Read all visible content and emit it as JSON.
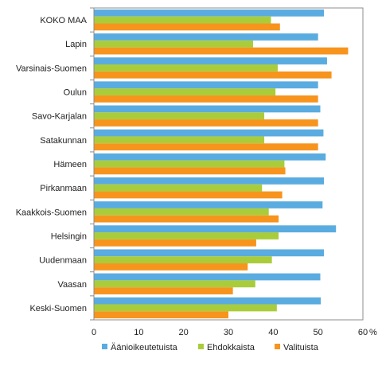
{
  "chart_data": {
    "type": "bar",
    "orientation": "horizontal",
    "categories": [
      "KOKO MAA",
      "Lapin",
      "Varsinais-Suomen",
      "Oulun",
      "Savo-Karjalan",
      "Satakunnan",
      "Hämeen",
      "Pirkanmaan",
      "Kaakkois-Suomen",
      "Helsingin",
      "Uudenmaan",
      "Vaasan",
      "Keski-Suomen"
    ],
    "series": [
      {
        "name": "Äänioikeutetuista",
        "color": "#5aace0",
        "values": [
          51.3,
          50.0,
          52.0,
          50.0,
          50.5,
          51.2,
          51.7,
          51.3,
          51.0,
          54.0,
          51.3,
          50.5,
          50.6
        ]
      },
      {
        "name": "Ehdokkaista",
        "color": "#a9cd3a",
        "values": [
          39.5,
          35.5,
          41.0,
          40.5,
          38.0,
          38.0,
          42.5,
          37.5,
          39.0,
          41.2,
          39.7,
          36.0,
          40.8
        ]
      },
      {
        "name": "Valituista",
        "color": "#f7941d",
        "values": [
          41.5,
          56.7,
          53.0,
          50.0,
          50.0,
          50.0,
          42.7,
          42.0,
          41.2,
          36.2,
          34.3,
          31.0,
          30.0
        ]
      }
    ],
    "xlim": [
      0,
      60
    ],
    "xticks": [
      "0",
      "10",
      "20",
      "30",
      "40",
      "50",
      "60"
    ],
    "unit": "%",
    "legend_position": "bottom",
    "grid": false
  }
}
